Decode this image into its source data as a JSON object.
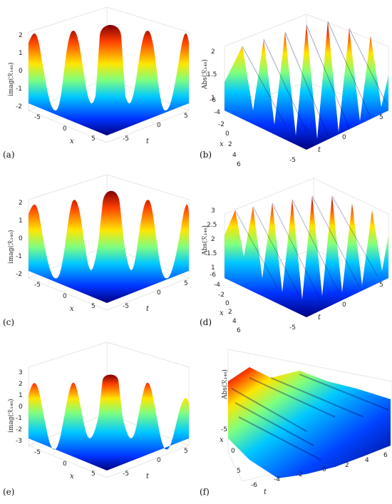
{
  "panels": [
    {
      "id": "a",
      "label": "(a)",
      "zlabel": "imag(ℛ₁₄₀)",
      "zticks": [
        "2",
        "1",
        "0",
        "-1",
        "-2"
      ],
      "xlabel": "x",
      "tlabel": "t",
      "xticks": [
        "-5",
        "0",
        "5"
      ],
      "tticks": [
        "-5",
        "0",
        "5"
      ]
    },
    {
      "id": "b",
      "label": "(b)",
      "zlabel": "Abs(ℛ₁₄₀)",
      "zticks": [
        "2",
        "1.5",
        "1"
      ],
      "xlabel": "x",
      "tlabel": "t",
      "xticks": [
        "-6",
        "-4",
        "-2",
        "0",
        "2",
        "4",
        "6"
      ],
      "tticks": [
        "-5",
        "0",
        "5"
      ]
    },
    {
      "id": "c",
      "label": "(c)",
      "zlabel": "imag(ℛ₁₄₀)",
      "zticks": [
        "2",
        "1",
        "0",
        "-1",
        "-2"
      ],
      "xlabel": "x",
      "tlabel": "t",
      "xticks": [
        "-5",
        "0",
        "5"
      ],
      "tticks": [
        "-5",
        "0",
        "5"
      ]
    },
    {
      "id": "d",
      "label": "(d)",
      "zlabel": "Abs(ℛ₁₄₀)",
      "zticks": [
        "3",
        "2.5",
        "2",
        "1.5",
        "1"
      ],
      "xlabel": "x",
      "tlabel": "t",
      "xticks": [
        "-6",
        "-4",
        "-2",
        "0",
        "2",
        "4",
        "6"
      ],
      "tticks": [
        "-5",
        "0",
        "5"
      ]
    },
    {
      "id": "e",
      "label": "(e)",
      "zlabel": "imag(ℛ₁₄₀)",
      "zticks": [
        "3",
        "2",
        "1",
        "0",
        "-1",
        "-2",
        "-3"
      ],
      "xlabel": "x",
      "tlabel": "t",
      "xticks": [
        "-5",
        "0",
        "5"
      ],
      "tticks": [
        "-5",
        "0",
        "5"
      ]
    },
    {
      "id": "f",
      "label": "(f)",
      "zlabel": "Abs(ℛ₁₄₀)",
      "zticks": [],
      "xlabel": "x",
      "tlabel": "t",
      "xticks": [
        "-5",
        "0",
        "5"
      ],
      "tticks": [
        "-6",
        "-4",
        "-2",
        "0",
        "2",
        "4",
        "6"
      ]
    }
  ],
  "colors": {
    "colormap": [
      "#00007f",
      "#0044ff",
      "#00c8ff",
      "#7fff7f",
      "#ffe500",
      "#ff5a00",
      "#7f0000"
    ],
    "grid": "#dddddd"
  }
}
